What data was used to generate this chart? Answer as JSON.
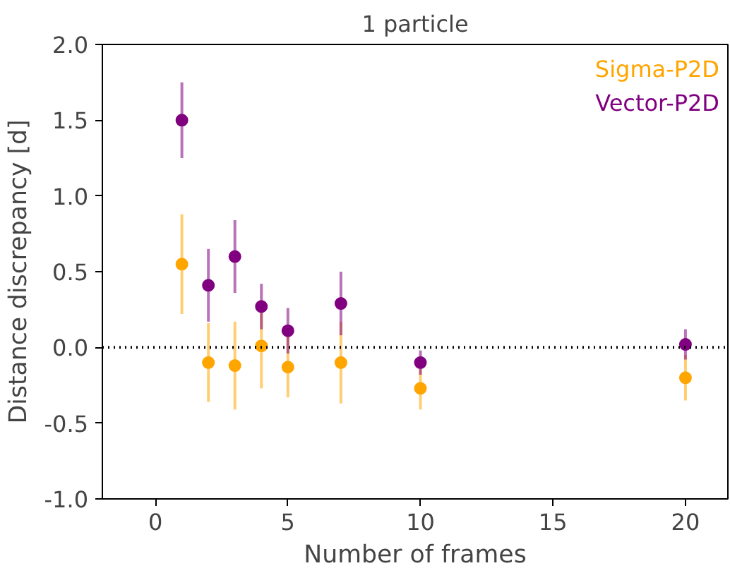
{
  "chart_data": {
    "type": "scatter",
    "title": "1 particle",
    "xlabel": "Number of frames",
    "ylabel": "Distance discrepancy [d]",
    "x": [
      1,
      2,
      3,
      4,
      5,
      7,
      10,
      20
    ],
    "series": [
      {
        "name": "Sigma-P2D",
        "color": "#ffa500",
        "values": [
          0.55,
          -0.1,
          -0.12,
          0.01,
          -0.13,
          -0.1,
          -0.27,
          -0.2
        ],
        "errors": [
          0.33,
          0.26,
          0.29,
          0.28,
          0.2,
          0.27,
          0.14,
          0.15
        ]
      },
      {
        "name": "Vector-P2D",
        "color": "#800080",
        "values": [
          1.5,
          0.41,
          0.6,
          0.27,
          0.11,
          0.29,
          -0.1,
          0.02
        ],
        "errors": [
          0.25,
          0.24,
          0.24,
          0.15,
          0.15,
          0.21,
          0.08,
          0.1
        ]
      }
    ],
    "xlim": [
      -2,
      21.6
    ],
    "ylim": [
      -1,
      2
    ],
    "xticks": [
      0,
      5,
      10,
      15,
      20
    ],
    "yticks": [
      {
        "value": -1,
        "label": "-1.0"
      },
      -0.5,
      {
        "value": 0,
        "label": "0.0"
      },
      0.5,
      {
        "value": 1,
        "label": "1.0"
      },
      1.5,
      {
        "value": 2,
        "label": "2.0"
      }
    ],
    "ref_lines": [
      {
        "axis": "y",
        "value": 0,
        "color": "#000000",
        "line_style": "dotted"
      }
    ],
    "grid": false,
    "legend": "top right",
    "marker": "circle"
  }
}
